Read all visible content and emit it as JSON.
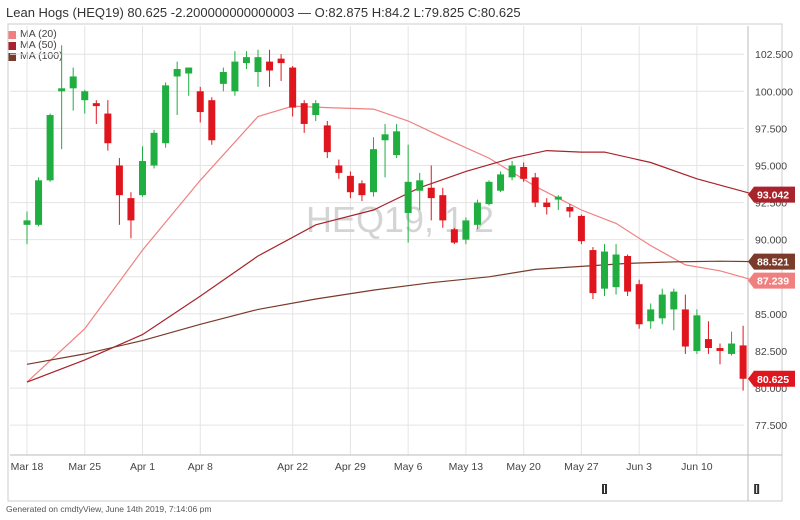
{
  "header": {
    "title": "Lean Hogs (HEQ19) 80.625 -2.200000000000003 — O:82.875 H:84.2 L:79.825 C:80.625"
  },
  "watermark": "HEQ19, 1 2",
  "footer": "Generated on cmdtyView, June 14th 2019, 7:14:06 pm",
  "colors": {
    "up": "#1fae3f",
    "down": "#e0161e",
    "ma20": "#f08080",
    "ma50": "#a8232b",
    "ma100": "#7a3b2a",
    "grid": "#e4e4e4"
  },
  "chart_data": {
    "type": "candlestick",
    "title": "Lean Hogs (HEQ19)",
    "ylim": [
      76.5,
      104.4
    ],
    "yticks": [
      "77.500",
      "80.000",
      "82.500",
      "85.000",
      "87.500",
      "90.000",
      "92.500",
      "95.000",
      "97.500",
      "100.000",
      "102.500"
    ],
    "xticks": [
      "Mar 18",
      "Mar 25",
      "Apr 1",
      "Apr 8",
      "Apr 22",
      "Apr 29",
      "May 6",
      "May 13",
      "May 20",
      "May 27",
      "Jun 3",
      "Jun 10"
    ],
    "legend": [
      {
        "name": "MA (20)",
        "color": "#f08080"
      },
      {
        "name": "MA (50)",
        "color": "#a8232b"
      },
      {
        "name": "MA (100)",
        "color": "#7a3b2a"
      }
    ],
    "last_labels": [
      {
        "value": "93.042",
        "color": "#a8232b",
        "price": 93.04
      },
      {
        "value": "88.521",
        "color": "#7a3b2a",
        "price": 88.52
      },
      {
        "value": "87.239",
        "color": "#f08080",
        "price": 87.24
      },
      {
        "value": "80.625",
        "color": "#e0161e",
        "price": 80.625
      }
    ],
    "candles": [
      {
        "date": "2019-03-18",
        "o": 91.0,
        "h": 91.9,
        "l": 89.7,
        "c": 91.3
      },
      {
        "date": "2019-03-19",
        "o": 91.0,
        "h": 94.2,
        "l": 90.9,
        "c": 94.0
      },
      {
        "date": "2019-03-20",
        "o": 94.0,
        "h": 98.5,
        "l": 93.9,
        "c": 98.4
      },
      {
        "date": "2019-03-21",
        "o": 100.0,
        "h": 103.1,
        "l": 96.1,
        "c": 100.2
      },
      {
        "date": "2019-03-22",
        "o": 100.2,
        "h": 101.6,
        "l": 98.7,
        "c": 101.0
      },
      {
        "date": "2019-03-25",
        "o": 99.4,
        "h": 100.1,
        "l": 98.5,
        "c": 100.0
      },
      {
        "date": "2019-03-26",
        "o": 99.2,
        "h": 99.4,
        "l": 97.8,
        "c": 99.0
      },
      {
        "date": "2019-03-27",
        "o": 98.5,
        "h": 99.4,
        "l": 96.0,
        "c": 96.5
      },
      {
        "date": "2019-03-28",
        "o": 95.0,
        "h": 95.5,
        "l": 91.0,
        "c": 93.0
      },
      {
        "date": "2019-03-29",
        "o": 92.8,
        "h": 93.2,
        "l": 90.1,
        "c": 91.3
      },
      {
        "date": "2019-04-01",
        "o": 93.0,
        "h": 96.3,
        "l": 92.9,
        "c": 95.3
      },
      {
        "date": "2019-04-02",
        "o": 95.0,
        "h": 97.4,
        "l": 94.8,
        "c": 97.2
      },
      {
        "date": "2019-04-03",
        "o": 96.5,
        "h": 100.6,
        "l": 96.2,
        "c": 100.4
      },
      {
        "date": "2019-04-04",
        "o": 101.0,
        "h": 102.0,
        "l": 98.4,
        "c": 101.5
      },
      {
        "date": "2019-04-05",
        "o": 101.2,
        "h": 101.5,
        "l": 99.7,
        "c": 101.6
      },
      {
        "date": "2019-04-08",
        "o": 100.0,
        "h": 100.3,
        "l": 97.9,
        "c": 98.6
      },
      {
        "date": "2019-04-09",
        "o": 99.4,
        "h": 99.6,
        "l": 96.4,
        "c": 96.7
      },
      {
        "date": "2019-04-10",
        "o": 100.5,
        "h": 101.6,
        "l": 100.0,
        "c": 101.3
      },
      {
        "date": "2019-04-11",
        "o": 100.0,
        "h": 102.7,
        "l": 99.7,
        "c": 102.0
      },
      {
        "date": "2019-04-12",
        "o": 101.9,
        "h": 102.7,
        "l": 101.5,
        "c": 102.3
      },
      {
        "date": "2019-04-15",
        "o": 101.3,
        "h": 102.8,
        "l": 100.3,
        "c": 102.3
      },
      {
        "date": "2019-04-16",
        "o": 102.0,
        "h": 102.8,
        "l": 100.3,
        "c": 101.4
      },
      {
        "date": "2019-04-17",
        "o": 102.2,
        "h": 102.5,
        "l": 100.7,
        "c": 101.9
      },
      {
        "date": "2019-04-22",
        "o": 101.6,
        "h": 101.7,
        "l": 98.3,
        "c": 98.9
      },
      {
        "date": "2019-04-23",
        "o": 99.2,
        "h": 99.4,
        "l": 97.2,
        "c": 97.8
      },
      {
        "date": "2019-04-24",
        "o": 98.4,
        "h": 99.4,
        "l": 98.0,
        "c": 99.2
      },
      {
        "date": "2019-04-25",
        "o": 97.7,
        "h": 98.0,
        "l": 95.5,
        "c": 95.9
      },
      {
        "date": "2019-04-26",
        "o": 95.0,
        "h": 95.4,
        "l": 94.1,
        "c": 94.5
      },
      {
        "date": "2019-04-29",
        "o": 94.3,
        "h": 94.6,
        "l": 92.8,
        "c": 93.2
      },
      {
        "date": "2019-04-30",
        "o": 93.8,
        "h": 94.0,
        "l": 92.6,
        "c": 93.0
      },
      {
        "date": "2019-05-01",
        "o": 93.2,
        "h": 96.9,
        "l": 92.9,
        "c": 96.1
      },
      {
        "date": "2019-05-02",
        "o": 96.7,
        "h": 97.8,
        "l": 94.2,
        "c": 97.1
      },
      {
        "date": "2019-05-03",
        "o": 95.7,
        "h": 97.8,
        "l": 95.5,
        "c": 97.3
      },
      {
        "date": "2019-05-06",
        "o": 91.8,
        "h": 96.4,
        "l": 89.8,
        "c": 93.9
      },
      {
        "date": "2019-05-07",
        "o": 93.3,
        "h": 94.5,
        "l": 92.0,
        "c": 94.0
      },
      {
        "date": "2019-05-08",
        "o": 93.5,
        "h": 95.0,
        "l": 91.3,
        "c": 92.8
      },
      {
        "date": "2019-05-09",
        "o": 93.0,
        "h": 93.5,
        "l": 90.8,
        "c": 91.3
      },
      {
        "date": "2019-05-10",
        "o": 90.7,
        "h": 90.8,
        "l": 89.7,
        "c": 89.8
      },
      {
        "date": "2019-05-13",
        "o": 90.0,
        "h": 91.5,
        "l": 89.7,
        "c": 91.3
      },
      {
        "date": "2019-05-14",
        "o": 91.0,
        "h": 92.7,
        "l": 90.7,
        "c": 92.5
      },
      {
        "date": "2019-05-15",
        "o": 92.4,
        "h": 94.0,
        "l": 92.3,
        "c": 93.9
      },
      {
        "date": "2019-05-16",
        "o": 93.3,
        "h": 94.6,
        "l": 93.2,
        "c": 94.4
      },
      {
        "date": "2019-05-17",
        "o": 94.2,
        "h": 95.3,
        "l": 94.0,
        "c": 95.0
      },
      {
        "date": "2019-05-20",
        "o": 94.9,
        "h": 95.2,
        "l": 93.9,
        "c": 94.1
      },
      {
        "date": "2019-05-21",
        "o": 94.2,
        "h": 94.5,
        "l": 92.2,
        "c": 92.5
      },
      {
        "date": "2019-05-22",
        "o": 92.5,
        "h": 92.8,
        "l": 91.7,
        "c": 92.2
      },
      {
        "date": "2019-05-23",
        "o": 92.7,
        "h": 93.0,
        "l": 92.0,
        "c": 92.9
      },
      {
        "date": "2019-05-24",
        "o": 92.2,
        "h": 92.4,
        "l": 91.5,
        "c": 91.9
      },
      {
        "date": "2019-05-27",
        "o": 91.6,
        "h": 91.7,
        "l": 89.7,
        "c": 89.9
      },
      {
        "date": "2019-05-28",
        "o": 89.3,
        "h": 89.5,
        "l": 86.0,
        "c": 86.4
      },
      {
        "date": "2019-05-29",
        "o": 86.7,
        "h": 89.7,
        "l": 86.2,
        "c": 89.2
      },
      {
        "date": "2019-05-30",
        "o": 86.8,
        "h": 89.7,
        "l": 86.3,
        "c": 89.0
      },
      {
        "date": "2019-05-31",
        "o": 88.9,
        "h": 89.0,
        "l": 86.2,
        "c": 86.5
      },
      {
        "date": "2019-06-03",
        "o": 87.0,
        "h": 87.3,
        "l": 84.0,
        "c": 84.3
      },
      {
        "date": "2019-06-04",
        "o": 84.5,
        "h": 85.7,
        "l": 84.0,
        "c": 85.3
      },
      {
        "date": "2019-06-05",
        "o": 84.7,
        "h": 86.7,
        "l": 84.3,
        "c": 86.3
      },
      {
        "date": "2019-06-06",
        "o": 85.3,
        "h": 86.7,
        "l": 83.9,
        "c": 86.5
      },
      {
        "date": "2019-06-07",
        "o": 85.3,
        "h": 86.3,
        "l": 82.3,
        "c": 82.8
      },
      {
        "date": "2019-06-10",
        "o": 82.5,
        "h": 85.3,
        "l": 82.3,
        "c": 84.9
      },
      {
        "date": "2019-06-11",
        "o": 83.3,
        "h": 84.5,
        "l": 82.3,
        "c": 82.7
      },
      {
        "date": "2019-06-12",
        "o": 82.7,
        "h": 83.0,
        "l": 81.6,
        "c": 82.5
      },
      {
        "date": "2019-06-13",
        "o": 82.3,
        "h": 83.8,
        "l": 82.2,
        "c": 83.0
      },
      {
        "date": "2019-06-14",
        "o": 82.875,
        "h": 84.2,
        "l": 79.825,
        "c": 80.625
      }
    ],
    "ma_series": [
      {
        "name": "MA (20)",
        "values": [
          [
            0,
            80.4
          ],
          [
            5,
            84.0
          ],
          [
            10,
            89.3
          ],
          [
            15,
            94.0
          ],
          [
            20,
            98.3
          ],
          [
            23,
            99.0
          ],
          [
            26,
            98.9
          ],
          [
            30,
            98.8
          ],
          [
            33,
            98.0
          ],
          [
            36,
            96.9
          ],
          [
            40,
            95.5
          ],
          [
            44,
            93.6
          ],
          [
            48,
            92.0
          ],
          [
            51,
            91.1
          ],
          [
            54,
            89.6
          ],
          [
            57,
            88.3
          ],
          [
            60,
            87.9
          ],
          [
            63,
            87.24
          ]
        ]
      },
      {
        "name": "MA (50)",
        "values": [
          [
            0,
            80.4
          ],
          [
            5,
            81.9
          ],
          [
            10,
            83.6
          ],
          [
            15,
            86.2
          ],
          [
            20,
            88.9
          ],
          [
            25,
            91.0
          ],
          [
            30,
            92.0
          ],
          [
            34,
            93.5
          ],
          [
            38,
            94.6
          ],
          [
            42,
            95.5
          ],
          [
            45,
            96.0
          ],
          [
            48,
            95.9
          ],
          [
            50,
            95.9
          ],
          [
            54,
            95.2
          ],
          [
            58,
            94.1
          ],
          [
            63,
            93.04
          ]
        ]
      },
      {
        "name": "MA (100)",
        "values": [
          [
            0,
            81.6
          ],
          [
            5,
            82.3
          ],
          [
            10,
            83.2
          ],
          [
            15,
            84.3
          ],
          [
            20,
            85.3
          ],
          [
            25,
            86.0
          ],
          [
            30,
            86.6
          ],
          [
            35,
            87.1
          ],
          [
            40,
            87.5
          ],
          [
            44,
            88.0
          ],
          [
            48,
            88.2
          ],
          [
            52,
            88.4
          ],
          [
            56,
            88.5
          ],
          [
            60,
            88.55
          ],
          [
            63,
            88.52
          ]
        ]
      }
    ]
  }
}
